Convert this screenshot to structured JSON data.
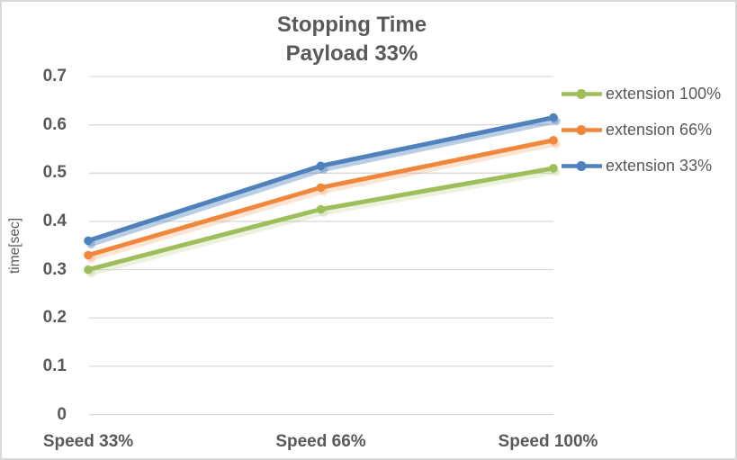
{
  "window": {
    "background": "#ffffff",
    "border_color": "#d9d9d9"
  },
  "chart_data": {
    "type": "line",
    "title": "Stopping Time",
    "subtitle": "Payload 33%",
    "ylabel": "time[sec]",
    "xlabel": "",
    "categories": [
      "Speed 33%",
      "Speed 66%",
      "Speed 100%"
    ],
    "series": [
      {
        "name": "extension 100%",
        "color": "#9ebe5b",
        "values": [
          0.3,
          0.425,
          0.51
        ]
      },
      {
        "name": "extension 66%",
        "color": "#f0873c",
        "values": [
          0.33,
          0.47,
          0.568
        ]
      },
      {
        "name": "extension 33%",
        "color": "#4f81bd",
        "values": [
          0.36,
          0.515,
          0.615
        ]
      }
    ],
    "yaxis": {
      "min": 0,
      "max": 0.7,
      "step": 0.1,
      "tick_labels": [
        "0",
        "0.1",
        "0.2",
        "0.3",
        "0.4",
        "0.5",
        "0.6",
        "0.7"
      ]
    },
    "legend_position": "right",
    "grid": true,
    "marker": "circle",
    "text_color": "#595959",
    "grid_color": "#d9d9d9"
  }
}
